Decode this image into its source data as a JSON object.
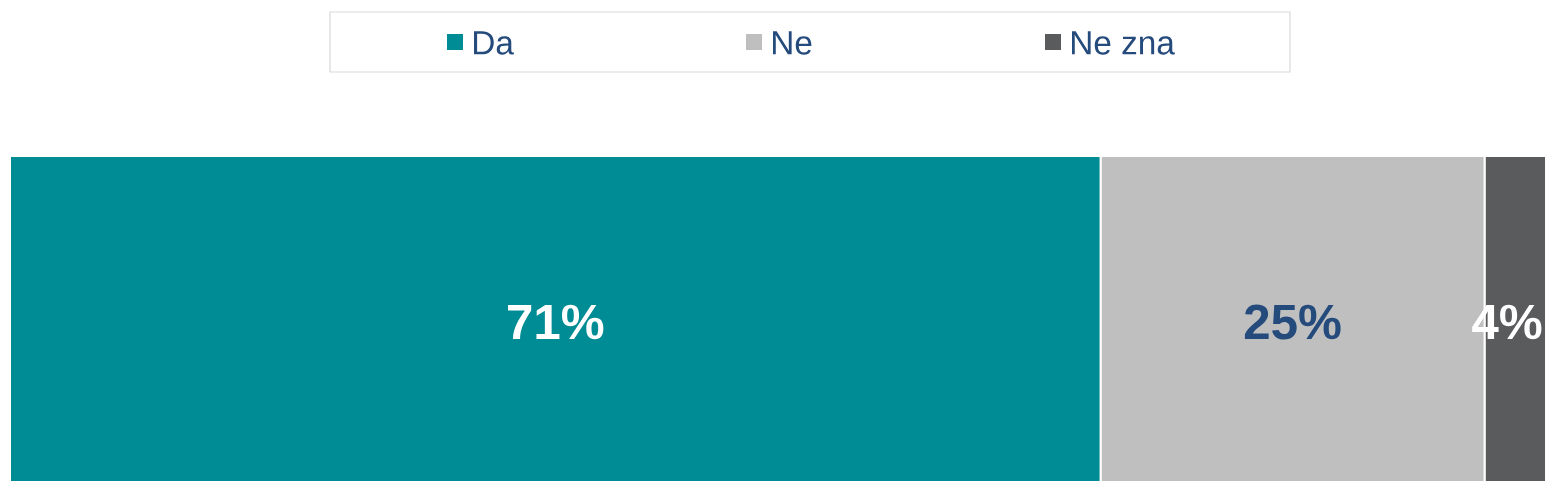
{
  "chart_data": {
    "type": "bar",
    "orientation": "horizontal",
    "stacked": true,
    "categories": [
      null
    ],
    "xlim": [
      0,
      100
    ],
    "tick_labels": false,
    "legend": "top",
    "series": [
      {
        "name": "Da",
        "color": "#008c94",
        "values": [
          71
        ],
        "value_labels": [
          "71%"
        ]
      },
      {
        "name": "Ne",
        "color": "#bfbfbf",
        "values": [
          25
        ],
        "value_labels": [
          "25%"
        ]
      },
      {
        "name": "Ne zna",
        "color": "#5a5b5d",
        "values": [
          4
        ],
        "value_labels": [
          "4%"
        ]
      }
    ]
  }
}
